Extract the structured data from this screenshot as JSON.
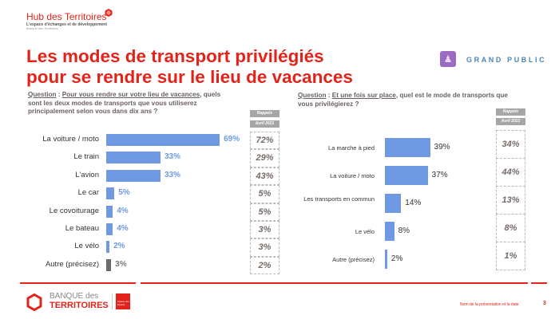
{
  "header": {
    "hub_title": "Hub des Territoires",
    "hub_subtitle": "L'espace d'échanges et de développement",
    "hub_subtitle2": "Banque des Territoires",
    "title_line1": "Les modes de transport privilégiés",
    "title_line2": "pour se rendre sur le lieu de vacances",
    "audience_label": "GRAND PUBLIC",
    "audience_icon": "group-people-icon"
  },
  "left": {
    "question_label": "Question",
    "question_sep": " : ",
    "question_underlined": "Pour vous rendre sur votre lieu de vacances",
    "question_rest": ", quels sont les deux modes de transports que vous utiliserez principalement selon vous dans dix ans ?",
    "recall_header": "Rappels",
    "recall_date": "Avril 2021"
  },
  "right": {
    "question_label": "Question",
    "question_sep": " : ",
    "question_underlined": "Et une fois sur place",
    "question_rest": ", quel est le mode de transports que vous privilégierez ?",
    "recall_header": "Rappels",
    "recall_date": "Avril 2021"
  },
  "chart_data": [
    {
      "type": "bar",
      "orientation": "horizontal",
      "categories": [
        "La voiture / moto",
        "Le train",
        "L'avion",
        "Le car",
        "Le covoiturage",
        "Le bateau",
        "Le vélo",
        "Autre (précisez)"
      ],
      "values": [
        69,
        33,
        33,
        5,
        4,
        4,
        2,
        3
      ],
      "labels": [
        "69%",
        "33%",
        "33%",
        "5%",
        "4%",
        "4%",
        "2%",
        "3%"
      ],
      "recall_values": [
        "72%",
        "29%",
        "43%",
        "5%",
        "5%",
        "3%",
        "3%",
        "2%"
      ],
      "colors": [
        "#6f9ae3",
        "#6f9ae3",
        "#6f9ae3",
        "#6f9ae3",
        "#6f9ae3",
        "#6f9ae3",
        "#6f9ae3",
        "#6b6b6b"
      ],
      "xlim": [
        0,
        100
      ],
      "grid": false
    },
    {
      "type": "bar",
      "orientation": "horizontal",
      "categories": [
        "La marche à pied",
        "La voiture / moto",
        "Les transports en commun",
        "Le vélo",
        "Autre (précisez)"
      ],
      "values": [
        39,
        37,
        14,
        8,
        2
      ],
      "labels": [
        "39%",
        "37%",
        "14%",
        "8%",
        "2%"
      ],
      "recall_values": [
        "34%",
        "44%",
        "13%",
        "8%",
        "1%"
      ],
      "colors": [
        "#6f9ae3",
        "#6f9ae3",
        "#6f9ae3",
        "#6f9ae3",
        "#6f9ae3"
      ],
      "xlim": [
        0,
        100
      ],
      "grid": false
    }
  ],
  "footer": {
    "brand_line1": "BANQUE des",
    "brand_line2": "TERRITOIRES",
    "cdc_text": "Caisse des Dépôts",
    "note": "Nom de la présentation et la date",
    "page_number": "3"
  }
}
